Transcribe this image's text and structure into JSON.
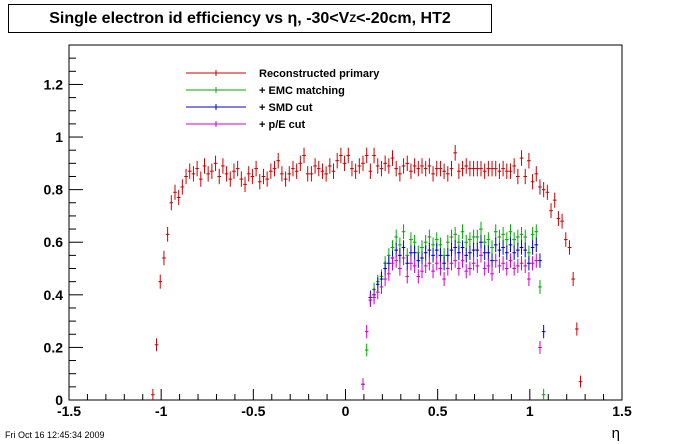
{
  "title": "Single electron id efficiency vs η, -30<V_Z<-20cm, HT2",
  "title_parts": {
    "before": "Single electron id efficiency vs η, -30<V",
    "subscript": "Z",
    "after": "<-20cm, HT2"
  },
  "footer_text": "Fri Oct 16 12:45:34 2009",
  "chart_data": {
    "type": "scatter",
    "xlabel": "η",
    "ylabel": "",
    "xlim": [
      -1.5,
      1.5
    ],
    "ylim": [
      0,
      1.35
    ],
    "x_ticks": [
      "-1.5",
      "-1",
      "-0.5",
      "0",
      "0.5",
      "1",
      "1.5"
    ],
    "y_ticks": [
      "0",
      "0.2",
      "0.4",
      "0.6",
      "0.8",
      "1",
      "1.2"
    ],
    "x_tick_values": [
      -1.5,
      -1,
      -0.5,
      0,
      0.5,
      1,
      1.5
    ],
    "y_tick_values": [
      0,
      0.2,
      0.4,
      0.6,
      0.8,
      1,
      1.2
    ],
    "legend_position": "top-center",
    "grid": false,
    "series": [
      {
        "name": "Reconstructed primary",
        "color": "#cc0000",
        "points": [
          [
            -1.045,
            0.02
          ],
          [
            -1.025,
            0.21
          ],
          [
            -1.005,
            0.45
          ],
          [
            -0.985,
            0.54
          ],
          [
            -0.965,
            0.63
          ],
          [
            -0.945,
            0.75
          ],
          [
            -0.925,
            0.79
          ],
          [
            -0.905,
            0.77
          ],
          [
            -0.885,
            0.81
          ],
          [
            -0.865,
            0.85
          ],
          [
            -0.845,
            0.87
          ],
          [
            -0.825,
            0.86
          ],
          [
            -0.805,
            0.88
          ],
          [
            -0.785,
            0.84
          ],
          [
            -0.765,
            0.89
          ],
          [
            -0.745,
            0.86
          ],
          [
            -0.725,
            0.87
          ],
          [
            -0.705,
            0.9
          ],
          [
            -0.685,
            0.85
          ],
          [
            -0.665,
            0.89
          ],
          [
            -0.645,
            0.86
          ],
          [
            -0.625,
            0.84
          ],
          [
            -0.605,
            0.87
          ],
          [
            -0.585,
            0.88
          ],
          [
            -0.565,
            0.84
          ],
          [
            -0.545,
            0.82
          ],
          [
            -0.525,
            0.86
          ],
          [
            -0.505,
            0.85
          ],
          [
            -0.485,
            0.88
          ],
          [
            -0.465,
            0.83
          ],
          [
            -0.445,
            0.85
          ],
          [
            -0.425,
            0.84
          ],
          [
            -0.405,
            0.87
          ],
          [
            -0.385,
            0.88
          ],
          [
            -0.365,
            0.91
          ],
          [
            -0.345,
            0.86
          ],
          [
            -0.325,
            0.84
          ],
          [
            -0.305,
            0.86
          ],
          [
            -0.285,
            0.88
          ],
          [
            -0.265,
            0.87
          ],
          [
            -0.245,
            0.9
          ],
          [
            -0.225,
            0.93
          ],
          [
            -0.205,
            0.86
          ],
          [
            -0.185,
            0.86
          ],
          [
            -0.165,
            0.89
          ],
          [
            -0.145,
            0.88
          ],
          [
            -0.125,
            0.87
          ],
          [
            -0.105,
            0.86
          ],
          [
            -0.085,
            0.89
          ],
          [
            -0.065,
            0.87
          ],
          [
            -0.045,
            0.91
          ],
          [
            -0.025,
            0.93
          ],
          [
            -0.005,
            0.9
          ],
          [
            0.015,
            0.93
          ],
          [
            0.035,
            0.88
          ],
          [
            0.055,
            0.87
          ],
          [
            0.075,
            0.89
          ],
          [
            0.095,
            0.9
          ],
          [
            0.115,
            0.93
          ],
          [
            0.135,
            0.87
          ],
          [
            0.155,
            0.93
          ],
          [
            0.175,
            0.89
          ],
          [
            0.195,
            0.88
          ],
          [
            0.215,
            0.9
          ],
          [
            0.235,
            0.89
          ],
          [
            0.255,
            0.92
          ],
          [
            0.275,
            0.88
          ],
          [
            0.295,
            0.86
          ],
          [
            0.315,
            0.89
          ],
          [
            0.335,
            0.9
          ],
          [
            0.355,
            0.87
          ],
          [
            0.375,
            0.89
          ],
          [
            0.395,
            0.88
          ],
          [
            0.415,
            0.89
          ],
          [
            0.435,
            0.88
          ],
          [
            0.455,
            0.89
          ],
          [
            0.475,
            0.86
          ],
          [
            0.495,
            0.88
          ],
          [
            0.515,
            0.88
          ],
          [
            0.535,
            0.87
          ],
          [
            0.555,
            0.86
          ],
          [
            0.575,
            0.88
          ],
          [
            0.595,
            0.94
          ],
          [
            0.615,
            0.87
          ],
          [
            0.635,
            0.88
          ],
          [
            0.655,
            0.89
          ],
          [
            0.675,
            0.88
          ],
          [
            0.695,
            0.88
          ],
          [
            0.715,
            0.88
          ],
          [
            0.735,
            0.88
          ],
          [
            0.755,
            0.87
          ],
          [
            0.775,
            0.88
          ],
          [
            0.795,
            0.88
          ],
          [
            0.815,
            0.88
          ],
          [
            0.835,
            0.87
          ],
          [
            0.855,
            0.88
          ],
          [
            0.875,
            0.87
          ],
          [
            0.895,
            0.87
          ],
          [
            0.915,
            0.89
          ],
          [
            0.935,
            0.85
          ],
          [
            0.955,
            0.92
          ],
          [
            0.975,
            0.85
          ],
          [
            0.995,
            0.91
          ],
          [
            1.015,
            0.83
          ],
          [
            1.035,
            0.86
          ],
          [
            1.055,
            0.81
          ],
          [
            1.075,
            0.8
          ],
          [
            1.095,
            0.79
          ],
          [
            1.115,
            0.72
          ],
          [
            1.135,
            0.76
          ],
          [
            1.155,
            0.69
          ],
          [
            1.175,
            0.68
          ],
          [
            1.195,
            0.61
          ],
          [
            1.215,
            0.58
          ],
          [
            1.235,
            0.46
          ],
          [
            1.255,
            0.27
          ],
          [
            1.275,
            0.07
          ]
        ]
      },
      {
        "name": "+ EMC matching",
        "color": "#00aa00",
        "points": [
          [
            0.095,
            0.06
          ],
          [
            0.115,
            0.19
          ],
          [
            0.135,
            0.38
          ],
          [
            0.155,
            0.42
          ],
          [
            0.175,
            0.45
          ],
          [
            0.195,
            0.47
          ],
          [
            0.215,
            0.52
          ],
          [
            0.235,
            0.55
          ],
          [
            0.255,
            0.58
          ],
          [
            0.275,
            0.62
          ],
          [
            0.295,
            0.59
          ],
          [
            0.315,
            0.64
          ],
          [
            0.335,
            0.55
          ],
          [
            0.355,
            0.61
          ],
          [
            0.375,
            0.6
          ],
          [
            0.395,
            0.56
          ],
          [
            0.415,
            0.58
          ],
          [
            0.435,
            0.6
          ],
          [
            0.455,
            0.62
          ],
          [
            0.475,
            0.59
          ],
          [
            0.495,
            0.61
          ],
          [
            0.515,
            0.59
          ],
          [
            0.535,
            0.55
          ],
          [
            0.555,
            0.6
          ],
          [
            0.575,
            0.62
          ],
          [
            0.595,
            0.63
          ],
          [
            0.615,
            0.6
          ],
          [
            0.635,
            0.64
          ],
          [
            0.655,
            0.6
          ],
          [
            0.675,
            0.61
          ],
          [
            0.695,
            0.62
          ],
          [
            0.715,
            0.62
          ],
          [
            0.735,
            0.65
          ],
          [
            0.755,
            0.6
          ],
          [
            0.775,
            0.61
          ],
          [
            0.795,
            0.58
          ],
          [
            0.815,
            0.64
          ],
          [
            0.835,
            0.62
          ],
          [
            0.855,
            0.63
          ],
          [
            0.875,
            0.61
          ],
          [
            0.895,
            0.64
          ],
          [
            0.915,
            0.61
          ],
          [
            0.935,
            0.62
          ],
          [
            0.955,
            0.63
          ],
          [
            0.975,
            0.62
          ],
          [
            0.995,
            0.56
          ],
          [
            1.015,
            0.63
          ],
          [
            1.035,
            0.64
          ],
          [
            1.055,
            0.43
          ],
          [
            1.075,
            0.02
          ]
        ]
      },
      {
        "name": "+ SMD cut",
        "color": "#0000cc",
        "points": [
          [
            0.135,
            0.39
          ],
          [
            0.155,
            0.4
          ],
          [
            0.175,
            0.44
          ],
          [
            0.195,
            0.46
          ],
          [
            0.215,
            0.5
          ],
          [
            0.235,
            0.52
          ],
          [
            0.255,
            0.54
          ],
          [
            0.275,
            0.57
          ],
          [
            0.295,
            0.55
          ],
          [
            0.315,
            0.58
          ],
          [
            0.335,
            0.52
          ],
          [
            0.355,
            0.56
          ],
          [
            0.375,
            0.56
          ],
          [
            0.395,
            0.53
          ],
          [
            0.415,
            0.54
          ],
          [
            0.435,
            0.56
          ],
          [
            0.455,
            0.57
          ],
          [
            0.475,
            0.55
          ],
          [
            0.495,
            0.57
          ],
          [
            0.515,
            0.55
          ],
          [
            0.535,
            0.52
          ],
          [
            0.555,
            0.55
          ],
          [
            0.575,
            0.57
          ],
          [
            0.595,
            0.58
          ],
          [
            0.615,
            0.56
          ],
          [
            0.635,
            0.58
          ],
          [
            0.655,
            0.55
          ],
          [
            0.675,
            0.56
          ],
          [
            0.695,
            0.57
          ],
          [
            0.715,
            0.57
          ],
          [
            0.735,
            0.6
          ],
          [
            0.755,
            0.56
          ],
          [
            0.775,
            0.56
          ],
          [
            0.795,
            0.53
          ],
          [
            0.815,
            0.59
          ],
          [
            0.835,
            0.57
          ],
          [
            0.855,
            0.58
          ],
          [
            0.875,
            0.56
          ],
          [
            0.895,
            0.59
          ],
          [
            0.915,
            0.56
          ],
          [
            0.935,
            0.57
          ],
          [
            0.955,
            0.58
          ],
          [
            0.975,
            0.57
          ],
          [
            0.995,
            0.52
          ],
          [
            1.015,
            0.58
          ],
          [
            1.035,
            0.59
          ],
          [
            1.055,
            0.53
          ],
          [
            1.075,
            0.26
          ]
        ]
      },
      {
        "name": "+ p/E cut",
        "color": "#cc00cc",
        "points": [
          [
            0.095,
            0.06
          ],
          [
            0.115,
            0.26
          ],
          [
            0.135,
            0.38
          ],
          [
            0.155,
            0.39
          ],
          [
            0.175,
            0.41
          ],
          [
            0.195,
            0.43
          ],
          [
            0.215,
            0.46
          ],
          [
            0.235,
            0.48
          ],
          [
            0.255,
            0.52
          ],
          [
            0.275,
            0.53
          ],
          [
            0.295,
            0.5
          ],
          [
            0.315,
            0.54
          ],
          [
            0.335,
            0.47
          ],
          [
            0.355,
            0.52
          ],
          [
            0.375,
            0.51
          ],
          [
            0.395,
            0.47
          ],
          [
            0.415,
            0.49
          ],
          [
            0.435,
            0.51
          ],
          [
            0.455,
            0.52
          ],
          [
            0.475,
            0.49
          ],
          [
            0.495,
            0.52
          ],
          [
            0.515,
            0.5
          ],
          [
            0.535,
            0.46
          ],
          [
            0.555,
            0.5
          ],
          [
            0.575,
            0.52
          ],
          [
            0.595,
            0.53
          ],
          [
            0.615,
            0.5
          ],
          [
            0.635,
            0.53
          ],
          [
            0.655,
            0.49
          ],
          [
            0.675,
            0.5
          ],
          [
            0.695,
            0.52
          ],
          [
            0.715,
            0.51
          ],
          [
            0.735,
            0.55
          ],
          [
            0.755,
            0.5
          ],
          [
            0.775,
            0.51
          ],
          [
            0.795,
            0.48
          ],
          [
            0.815,
            0.53
          ],
          [
            0.835,
            0.51
          ],
          [
            0.855,
            0.52
          ],
          [
            0.875,
            0.5
          ],
          [
            0.895,
            0.53
          ],
          [
            0.915,
            0.5
          ],
          [
            0.935,
            0.51
          ],
          [
            0.955,
            0.52
          ],
          [
            0.975,
            0.51
          ],
          [
            0.995,
            0.46
          ],
          [
            1.015,
            0.52
          ],
          [
            1.035,
            0.53
          ],
          [
            1.055,
            0.2
          ]
        ]
      }
    ]
  }
}
